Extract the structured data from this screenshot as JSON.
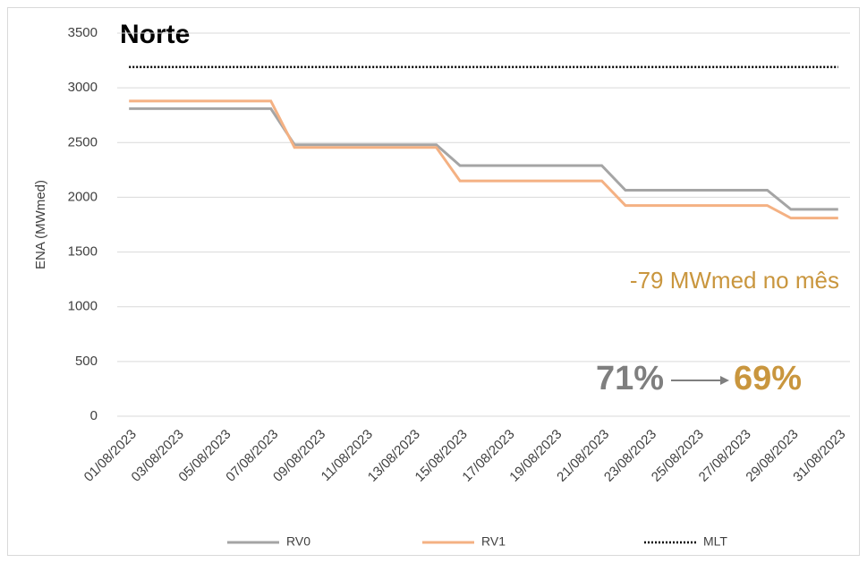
{
  "chart_data": {
    "type": "line",
    "title": "Norte",
    "y_label": "ENA (MWmed)",
    "categories": [
      "01/08/2023",
      null,
      "03/08/2023",
      null,
      "05/08/2023",
      null,
      "07/08/2023",
      null,
      "09/08/2023",
      null,
      "11/08/2023",
      null,
      "13/08/2023",
      null,
      "15/08/2023",
      null,
      "17/08/2023",
      null,
      "19/08/2023",
      null,
      "21/08/2023",
      null,
      "23/08/2023",
      null,
      "25/08/2023",
      null,
      "27/08/2023",
      null,
      "29/08/2023",
      null,
      "31/08/2023"
    ],
    "series": [
      {
        "name": "RV0",
        "color": "#a5a5a5",
        "style": "solid",
        "values": [
          2810,
          2810,
          2810,
          2810,
          2810,
          2810,
          2810,
          2480,
          2480,
          2480,
          2480,
          2480,
          2480,
          2480,
          2290,
          2290,
          2290,
          2290,
          2290,
          2290,
          2290,
          2065,
          2065,
          2065,
          2065,
          2065,
          2065,
          2065,
          1890,
          1890,
          1890
        ]
      },
      {
        "name": "RV1",
        "color": "#f4b183",
        "style": "solid",
        "values": [
          2880,
          2880,
          2880,
          2880,
          2880,
          2880,
          2880,
          2455,
          2455,
          2455,
          2455,
          2455,
          2455,
          2455,
          2150,
          2150,
          2150,
          2150,
          2150,
          2150,
          2150,
          1925,
          1925,
          1925,
          1925,
          1925,
          1925,
          1925,
          1810,
          1810,
          1810
        ]
      },
      {
        "name": "MLT",
        "color": "#000000",
        "style": "dotted",
        "values": [
          3190,
          3190,
          3190,
          3190,
          3190,
          3190,
          3190,
          3190,
          3190,
          3190,
          3190,
          3190,
          3190,
          3190,
          3190,
          3190,
          3190,
          3190,
          3190,
          3190,
          3190,
          3190,
          3190,
          3190,
          3190,
          3190,
          3190,
          3190,
          3190,
          3190,
          3190
        ]
      }
    ],
    "ylim": [
      0,
      3500
    ],
    "yticks": [
      0,
      500,
      1000,
      1500,
      2000,
      2500,
      3000,
      3500
    ],
    "grid": true,
    "legend": "bottom",
    "annotations": {
      "delta": "-79 MWmed no mês",
      "from": "71%",
      "to": "69%"
    }
  }
}
